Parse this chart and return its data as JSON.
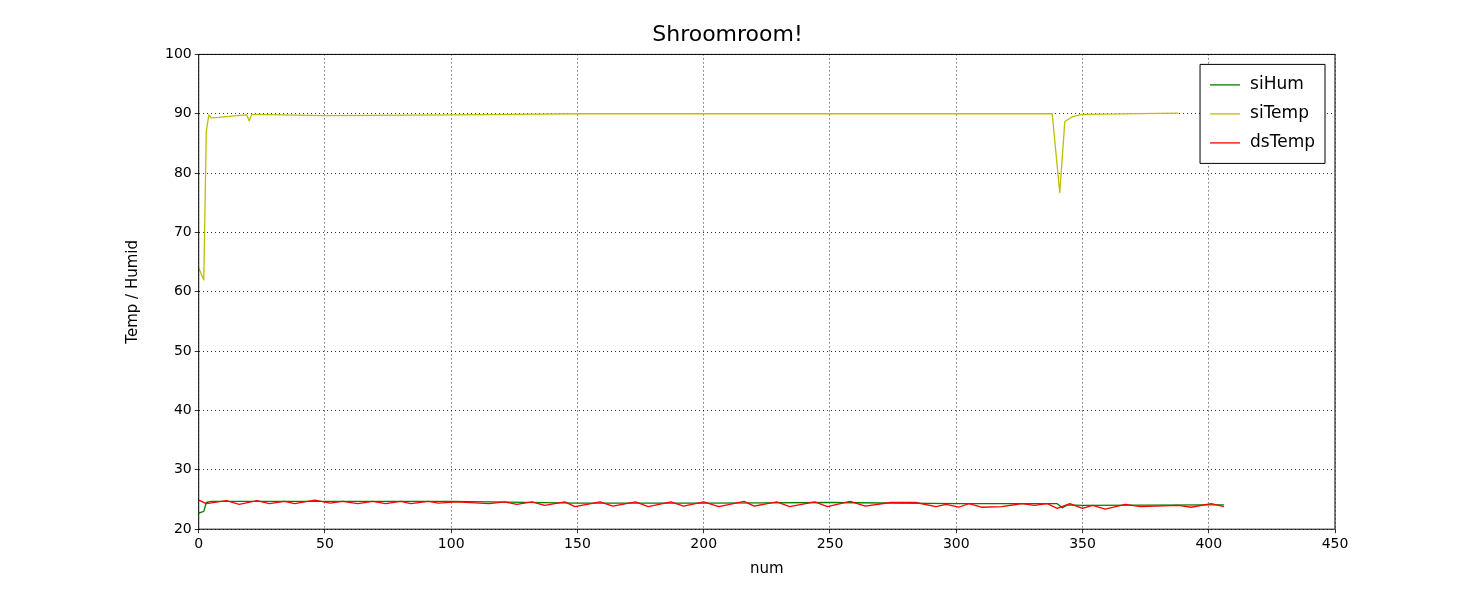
{
  "chart_data": {
    "type": "line",
    "title": "Shroomroom!",
    "xlabel": "num",
    "ylabel": "Temp / Humid",
    "xlim": [
      0,
      450
    ],
    "xticks": [
      0,
      50,
      100,
      150,
      200,
      250,
      300,
      350,
      400,
      450
    ],
    "ylim": [
      20,
      100
    ],
    "yticks": [
      20,
      30,
      40,
      50,
      60,
      70,
      80,
      90,
      100
    ],
    "grid": true,
    "legend": "top right",
    "marker": "none",
    "line_style": "solid",
    "series": [
      {
        "name": "siHum",
        "color": "#008000",
        "x": [
          0,
          2,
          3,
          5,
          50,
          100,
          150,
          200,
          250,
          300,
          340,
          342,
          344,
          350,
          400,
          406
        ],
        "values": [
          22.7,
          23,
          24.5,
          24.7,
          24.7,
          24.7,
          24.4,
          24.4,
          24.5,
          24.3,
          24.3,
          23.6,
          24.1,
          24.0,
          24.1,
          24.1
        ]
      },
      {
        "name": "siTemp",
        "color": "#bfbf00",
        "x": [
          0,
          2,
          3,
          4,
          5,
          8,
          15,
          19,
          20,
          21,
          50,
          100,
          150,
          200,
          250,
          300,
          338,
          341,
          343,
          346,
          350,
          388
        ],
        "values": [
          64,
          62,
          87,
          89.8,
          89.3,
          89.4,
          89.7,
          89.8,
          88.8,
          89.9,
          89.7,
          89.8,
          90,
          90,
          90,
          90,
          90,
          76.7,
          88.7,
          89.5,
          89.9,
          90.1
        ]
      },
      {
        "name": "dsTemp",
        "color": "#ff0000",
        "x": [
          0,
          3,
          11,
          16,
          23,
          28,
          34,
          38,
          46,
          52,
          57,
          63,
          69,
          74,
          80,
          84,
          91,
          95,
          102,
          115,
          121,
          126,
          132,
          137,
          145,
          149,
          159,
          164,
          173,
          178,
          187,
          192,
          200,
          206,
          216,
          220,
          229,
          234,
          244,
          249,
          258,
          264,
          274,
          284,
          292,
          296,
          301,
          305,
          310,
          318,
          326,
          331,
          336,
          340,
          345,
          350,
          354,
          359,
          367,
          373,
          388,
          393,
          401,
          406
        ],
        "values": [
          24.9,
          24.3,
          24.8,
          24.2,
          24.8,
          24.3,
          24.7,
          24.3,
          24.9,
          24.4,
          24.7,
          24.3,
          24.7,
          24.3,
          24.7,
          24.3,
          24.7,
          24.4,
          24.6,
          24.3,
          24.6,
          24.2,
          24.6,
          24,
          24.6,
          23.8,
          24.6,
          23.9,
          24.6,
          23.8,
          24.6,
          23.9,
          24.6,
          23.8,
          24.7,
          23.9,
          24.6,
          23.8,
          24.6,
          23.8,
          24.7,
          23.9,
          24.5,
          24.5,
          23.8,
          24.2,
          23.7,
          24.3,
          23.7,
          23.8,
          24.3,
          24.0,
          24.3,
          23.5,
          24.3,
          23.5,
          24.0,
          23.4,
          24.2,
          23.8,
          24.0,
          23.7,
          24.3,
          23.8
        ]
      }
    ]
  }
}
